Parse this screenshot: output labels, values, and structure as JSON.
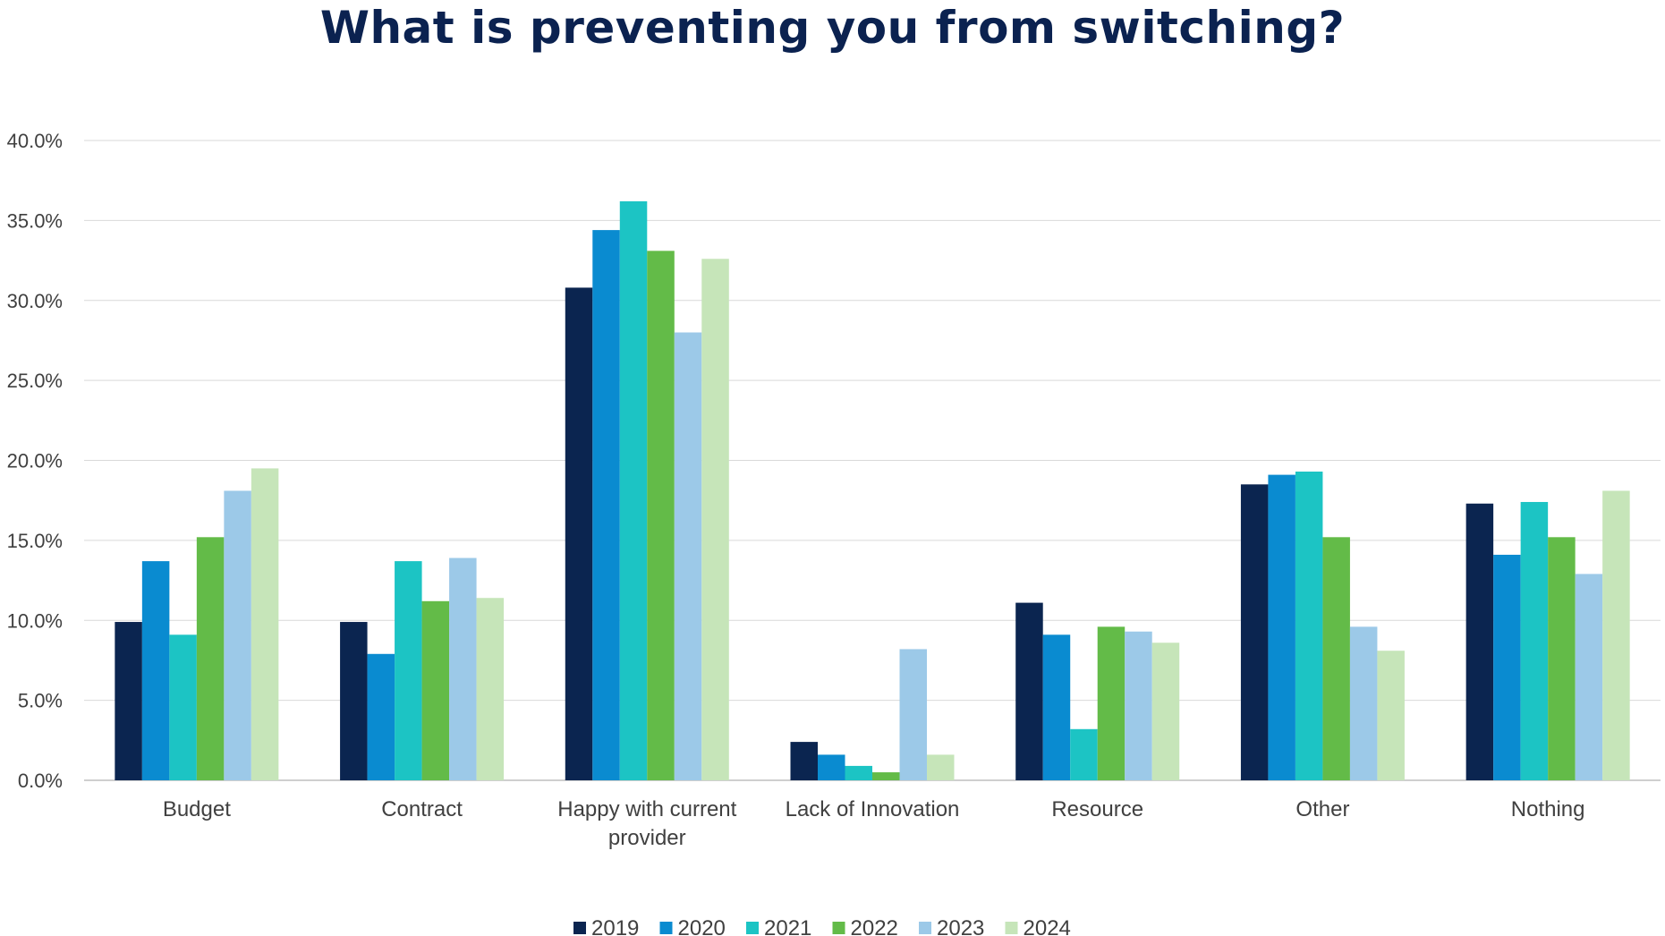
{
  "chart_data": {
    "type": "bar",
    "title": "What is preventing you from switching?",
    "xlabel": "",
    "ylabel": "",
    "ylim": [
      0,
      40
    ],
    "yticks": [
      "0.0%",
      "5.0%",
      "10.0%",
      "15.0%",
      "20.0%",
      "25.0%",
      "30.0%",
      "35.0%",
      "40.0%"
    ],
    "categories": [
      "Budget",
      "Contract",
      "Happy with current provider",
      "Lack of Innovation",
      "Resource",
      "Other",
      "Nothing"
    ],
    "series": [
      {
        "name": "2019",
        "color": "#0b2550",
        "values": [
          9.9,
          9.9,
          30.8,
          2.4,
          11.1,
          18.5,
          17.3
        ]
      },
      {
        "name": "2020",
        "color": "#0a8bd0",
        "values": [
          13.7,
          7.9,
          34.4,
          1.6,
          9.1,
          19.1,
          14.1
        ]
      },
      {
        "name": "2021",
        "color": "#1cc4c4",
        "values": [
          9.1,
          13.7,
          36.2,
          0.9,
          3.2,
          19.3,
          17.4
        ]
      },
      {
        "name": "2022",
        "color": "#63bb48",
        "values": [
          15.2,
          11.2,
          33.1,
          0.5,
          9.6,
          15.2,
          15.2
        ]
      },
      {
        "name": "2023",
        "color": "#9cc9e8",
        "values": [
          18.1,
          13.9,
          28.0,
          8.2,
          9.3,
          9.6,
          12.9
        ]
      },
      {
        "name": "2024",
        "color": "#c6e5b9",
        "values": [
          19.5,
          11.4,
          32.6,
          1.6,
          8.6,
          8.1,
          18.1
        ]
      }
    ],
    "grid": true,
    "legend": "bottom-center"
  }
}
